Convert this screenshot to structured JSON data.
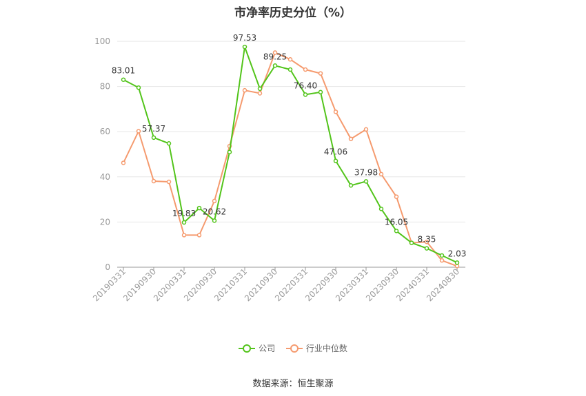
{
  "chart_data": {
    "type": "line",
    "title": "市净率历史分位（%）",
    "x": [
      "20190331",
      "20190630",
      "20190930",
      "20191231",
      "20200331",
      "20200630",
      "20200930",
      "20201231",
      "20210331",
      "20210630",
      "20210930",
      "20211231",
      "20220331",
      "20220630",
      "20220930",
      "20221231",
      "20230331",
      "20230630",
      "20230930",
      "20231231",
      "20240331",
      "20240630",
      "20240830"
    ],
    "x_tick_labels": [
      "20190331",
      "20190930",
      "20200331",
      "20200930",
      "20210331",
      "20210930",
      "20220331",
      "20220930",
      "20230331",
      "20230930",
      "20240331",
      "20240830"
    ],
    "ylim": [
      0,
      100
    ],
    "y_ticks": [
      0,
      20,
      40,
      60,
      80,
      100
    ],
    "grid": true,
    "legend_position": "bottom",
    "series": [
      {
        "name": "公司",
        "color": "#52c41a",
        "values": [
          83.01,
          79.5,
          57.37,
          54.8,
          19.83,
          26.2,
          20.62,
          51.0,
          97.53,
          79.0,
          89.25,
          87.5,
          76.4,
          77.5,
          47.06,
          36.2,
          37.98,
          25.8,
          16.05,
          10.8,
          8.35,
          5.2,
          2.03
        ],
        "labels": [
          "83.01",
          "",
          "57.37",
          "",
          "19.83",
          "",
          "20.62",
          "",
          "97.53",
          "",
          "89.25",
          "",
          "76.40",
          "",
          "47.06",
          "",
          "37.98",
          "",
          "16.05",
          "",
          "8.35",
          "",
          "2.03"
        ]
      },
      {
        "name": "行业中位数",
        "color": "#f59a6e",
        "values": [
          46.2,
          60.2,
          38.1,
          37.8,
          14.2,
          14.2,
          29.3,
          53.6,
          78.3,
          77.0,
          95.0,
          92.0,
          87.5,
          85.8,
          68.8,
          56.8,
          61.0,
          41.2,
          31.2,
          10.8,
          11.2,
          3.0,
          0.5
        ]
      }
    ]
  },
  "source": "数据来源：恒生聚源"
}
